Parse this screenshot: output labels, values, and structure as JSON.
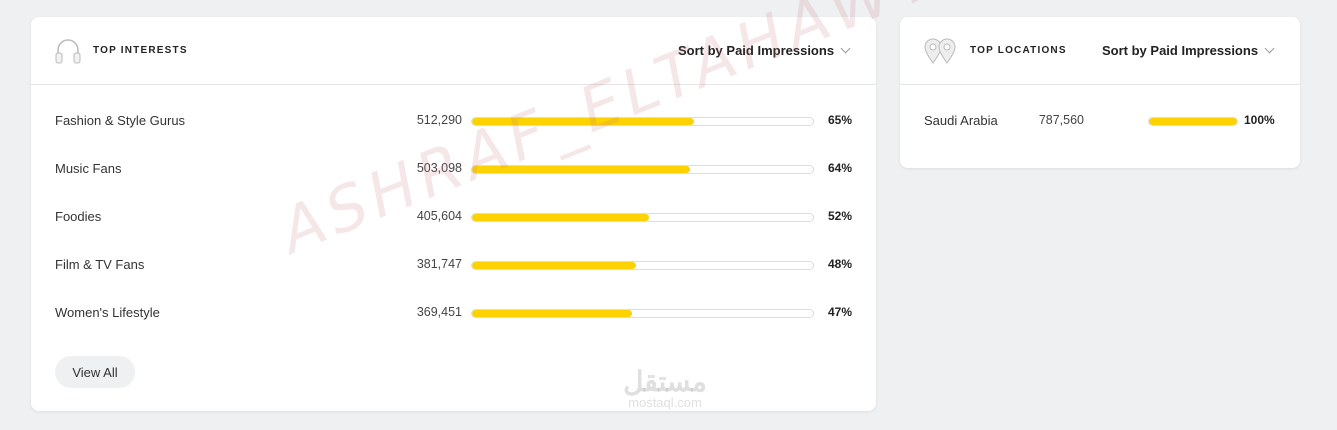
{
  "interests": {
    "title": "TOP INTERESTS",
    "icon": "headphones-icon",
    "sort_label": "Sort by Paid Impressions",
    "view_all": "View All",
    "items": [
      {
        "label": "Fashion & Style Gurus",
        "value": "512,290",
        "percent": 65,
        "percent_label": "65%"
      },
      {
        "label": "Music Fans",
        "value": "503,098",
        "percent": 64,
        "percent_label": "64%"
      },
      {
        "label": "Foodies",
        "value": "405,604",
        "percent": 52,
        "percent_label": "52%"
      },
      {
        "label": "Film & TV Fans",
        "value": "381,747",
        "percent": 48,
        "percent_label": "48%"
      },
      {
        "label": "Women's Lifestyle",
        "value": "369,451",
        "percent": 47,
        "percent_label": "47%"
      }
    ]
  },
  "locations": {
    "title": "TOP LOCATIONS",
    "icon": "map-pin-icon",
    "sort_label": "Sort by Paid Impressions",
    "items": [
      {
        "label": "Saudi Arabia",
        "value": "787,560",
        "percent": 100,
        "percent_label": "100%"
      }
    ]
  },
  "colors": {
    "bar": "#fcd200",
    "background": "#eff0f2"
  },
  "watermark": {
    "text": "ASHRAF_ELTAHAWY",
    "logo_ar": "مستقل",
    "logo_en": "mostaql.com"
  }
}
